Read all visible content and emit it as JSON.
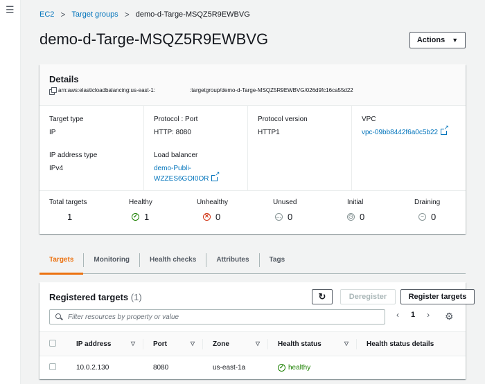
{
  "nav": {
    "menu_icon": "hamburger-icon"
  },
  "breadcrumb": {
    "items": [
      "EC2",
      "Target groups",
      "demo-d-Targe-MSQZ5R9EWBVG"
    ],
    "separator": ">"
  },
  "page": {
    "title": "demo-d-Targe-MSQZ5R9EWBVG",
    "actions_label": "Actions"
  },
  "details": {
    "title": "Details",
    "arn_prefix": "arn:aws:elasticloadbalancing:us-east-1:",
    "arn_suffix": ":targetgroup/demo-d-Targe-MSQZ5R9EWBVG/026d9fc16ca55d22",
    "target_type_label": "Target type",
    "target_type": "IP",
    "protocol_port_label": "Protocol : Port",
    "protocol_port": "HTTP: 8080",
    "protocol_version_label": "Protocol version",
    "protocol_version": "HTTP1",
    "vpc_label": "VPC",
    "vpc": "vpc-09bb8442f6a0c5b22",
    "ip_type_label": "IP address type",
    "ip_type": "IPv4",
    "lb_label": "Load balancer",
    "lb_line1": "demo-Publi-",
    "lb_line2": "WZZES6GOI0OR"
  },
  "counts": [
    {
      "label": "Total targets",
      "value": "1",
      "icon": ""
    },
    {
      "label": "Healthy",
      "value": "1",
      "icon": "check-circle-icon"
    },
    {
      "label": "Unhealthy",
      "value": "0",
      "icon": "x-circle-icon"
    },
    {
      "label": "Unused",
      "value": "0",
      "icon": "dots-circle-icon"
    },
    {
      "label": "Initial",
      "value": "0",
      "icon": "clock-circle-icon"
    },
    {
      "label": "Draining",
      "value": "0",
      "icon": "minus-circle-icon"
    }
  ],
  "tabs": [
    "Targets",
    "Monitoring",
    "Health checks",
    "Attributes",
    "Tags"
  ],
  "targets": {
    "title": "Registered targets",
    "count": "(1)",
    "deregister_label": "Deregister",
    "register_label": "Register targets",
    "search_placeholder": "Filter resources by property or value",
    "page": "1",
    "columns": [
      "IP address",
      "Port",
      "Zone",
      "Health status",
      "Health status details"
    ],
    "rows": [
      {
        "ip": "10.0.2.130",
        "port": "8080",
        "zone": "us-east-1a",
        "health": "healthy",
        "details": ""
      }
    ]
  },
  "colors": {
    "link": "#0073bb",
    "accent": "#ec7211",
    "healthy": "#1d8102",
    "unhealthy": "#d13212"
  }
}
